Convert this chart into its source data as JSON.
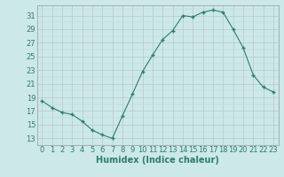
{
  "x": [
    0,
    1,
    2,
    3,
    4,
    5,
    6,
    7,
    8,
    9,
    10,
    11,
    12,
    13,
    14,
    15,
    16,
    17,
    18,
    19,
    20,
    21,
    22,
    23
  ],
  "y": [
    18.5,
    17.5,
    16.8,
    16.5,
    15.5,
    14.2,
    13.5,
    13.0,
    16.3,
    19.5,
    22.8,
    25.2,
    27.5,
    28.8,
    31.0,
    30.8,
    31.5,
    31.8,
    31.5,
    29.0,
    26.3,
    22.3,
    20.5,
    19.8
  ],
  "line_color": "#2e7d6e",
  "marker_color": "#2e7d6e",
  "bg_color": "#cce8e8",
  "grid_color_minor": "#b8d8d8",
  "grid_color_major": "#b8c8c8",
  "xlabel": "Humidex (Indice chaleur)",
  "xlim": [
    -0.5,
    23.5
  ],
  "ylim": [
    12,
    32.5
  ],
  "yticks": [
    13,
    15,
    17,
    19,
    21,
    23,
    25,
    27,
    29,
    31
  ],
  "xticks": [
    0,
    1,
    2,
    3,
    4,
    5,
    6,
    7,
    8,
    9,
    10,
    11,
    12,
    13,
    14,
    15,
    16,
    17,
    18,
    19,
    20,
    21,
    22,
    23
  ],
  "xlabel_fontsize": 7,
  "tick_fontsize": 6,
  "figsize": [
    3.2,
    2.0
  ],
  "dpi": 100
}
